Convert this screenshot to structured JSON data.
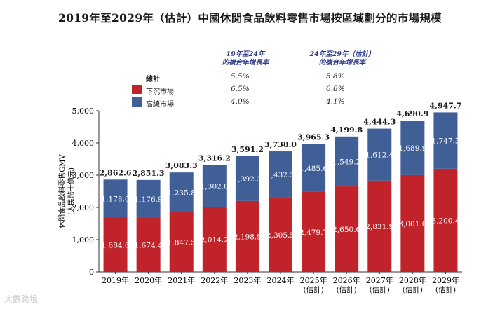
{
  "title": "2019年至2029年（估計）中國休閒食品飲料零售市場按區域劃分的市場規模",
  "legend": {
    "cagr_header_1": [
      "19年至24年",
      "的複合年增長率"
    ],
    "cagr_header_2": [
      "24年至29年（估計）",
      "的複合年增長率"
    ],
    "rows": [
      {
        "label": "總計",
        "cagr1": "5.5%",
        "cagr2": "5.8%",
        "color": ""
      },
      {
        "label": "下沉市場",
        "cagr1": "6.5%",
        "cagr2": "6.8%",
        "color": "#c0232a"
      },
      {
        "label": "高線市場",
        "cagr1": "4.0%",
        "cagr2": "4.1%",
        "color": "#3f5f96"
      }
    ]
  },
  "watermark": "大數跨境",
  "chart_data": {
    "type": "bar",
    "stacked": true,
    "categories": [
      "2019年",
      "2020年",
      "2021年",
      "2022年",
      "2023年",
      "2024年",
      "2025年",
      "2026年",
      "2027年",
      "2028年",
      "2029年"
    ],
    "sublabels": [
      "",
      "",
      "",
      "",
      "",
      "",
      "(估計)",
      "(估計)",
      "(估計)",
      "(估計)",
      "(估計)"
    ],
    "series": [
      {
        "name": "下沉市場",
        "color": "#c0232a",
        "values": [
          1684.6,
          1674.4,
          1847.5,
          2014.2,
          2198.9,
          2305.5,
          2479.7,
          2650.6,
          2831.9,
          3001.0,
          3200.4
        ],
        "labels": [
          "1,684.6",
          "1,674.4",
          "1,847.5",
          "2,014.2",
          "2,198.9",
          "2,305.5",
          "2,479.7",
          "2,650.6",
          "2,831.9",
          "3,001.0",
          "3,200.4"
        ]
      },
      {
        "name": "高線市場",
        "color": "#3f5f96",
        "values": [
          1178.0,
          1176.9,
          1235.8,
          1302.0,
          1392.3,
          1432.5,
          1485.6,
          1549.2,
          1612.4,
          1689.9,
          1747.3
        ],
        "labels": [
          "1,178.0",
          "1,176.9",
          "1,235.8",
          "1,302.0",
          "1,392.3",
          "1,432.5",
          "1,485.6",
          "1,549.2",
          "1,612.4",
          "1,689.9",
          "1,747.3"
        ]
      }
    ],
    "totals": [
      2862.6,
      2851.3,
      3083.3,
      3316.2,
      3591.2,
      3738.0,
      3965.3,
      4199.8,
      4444.3,
      4690.9,
      4947.7
    ],
    "total_labels": [
      "2,862.6",
      "2,851.3",
      "3,083.3",
      "3,316.2",
      "3,591.2",
      "3,738.0",
      "3,965.3",
      "4,199.8",
      "4,444.3",
      "4,690.9",
      "4,947.7"
    ],
    "ylim": [
      0,
      5000
    ],
    "yticks": [
      0,
      1000,
      2000,
      3000,
      4000,
      5000
    ],
    "ytick_labels": [
      "0",
      "1,000",
      "2,000",
      "3,000",
      "4,000",
      "5,000"
    ],
    "ylabel": "休閒食品飲料零售GMV",
    "ylabel_unit": "(人民幣十億元)",
    "xlabel": ""
  }
}
